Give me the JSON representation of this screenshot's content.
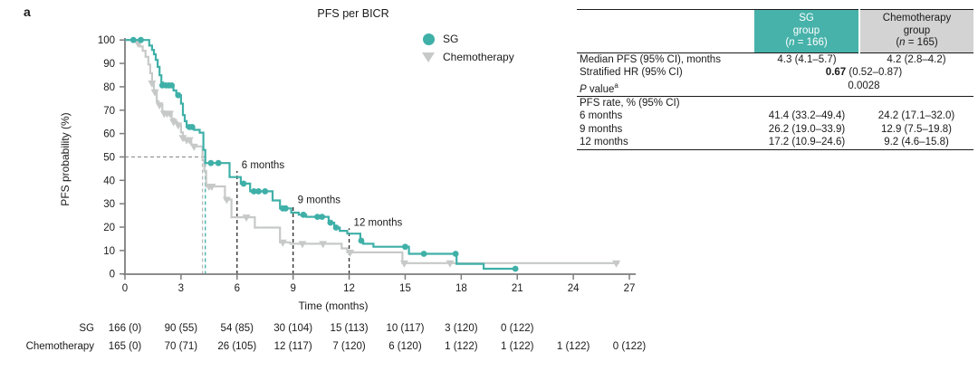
{
  "panel_label": "a",
  "title": "PFS per BICR",
  "colors": {
    "sg": "#3FB0A8",
    "chemo": "#C7C9C8",
    "header_sg_bg": "#47B2AA",
    "header_chemo_bg": "#D2D3D2",
    "shade": "#EAEAE9",
    "axis": "#7d7d7d",
    "guide_black": "#2b2b2b",
    "guide_gray": "#8f8f8f"
  },
  "legend": [
    {
      "label": "SG",
      "marker": "circle",
      "color": "#3FB0A8"
    },
    {
      "label": "Chemotherapy",
      "marker": "triangle-down",
      "color": "#C7C9C8"
    }
  ],
  "axes": {
    "x_label": "Time (months)",
    "y_label": "PFS probability (%)",
    "x_ticks": [
      0,
      3,
      6,
      9,
      12,
      15,
      18,
      21,
      24,
      27
    ],
    "y_ticks": [
      0,
      10,
      20,
      30,
      40,
      50,
      60,
      70,
      80,
      90,
      100
    ]
  },
  "chart_data": {
    "type": "line",
    "subtype": "kaplan-meier-step",
    "title": "PFS per BICR",
    "xlabel": "Time (months)",
    "ylabel": "PFS probability (%)",
    "xlim": [
      0,
      27
    ],
    "ylim": [
      0,
      100
    ],
    "series": [
      {
        "name": "SG",
        "color": "#3FB0A8",
        "marker": "circle",
        "steps": [
          [
            0,
            100
          ],
          [
            1.3,
            97.6
          ],
          [
            1.45,
            95.8
          ],
          [
            1.55,
            93.9
          ],
          [
            1.65,
            91.5
          ],
          [
            1.75,
            88.5
          ],
          [
            1.85,
            84.9
          ],
          [
            1.95,
            81.8
          ],
          [
            2.05,
            80.6
          ],
          [
            2.6,
            78.4
          ],
          [
            2.75,
            76.4
          ],
          [
            3.0,
            72.8
          ],
          [
            3.1,
            67.9
          ],
          [
            3.2,
            65.3
          ],
          [
            3.3,
            62.8
          ],
          [
            3.7,
            61.6
          ],
          [
            4.0,
            60.4
          ],
          [
            4.2,
            53.0
          ],
          [
            4.3,
            47.4
          ],
          [
            5.6,
            41.4
          ],
          [
            6.2,
            38.6
          ],
          [
            6.7,
            35.3
          ],
          [
            7.9,
            31.4
          ],
          [
            8.3,
            28.0
          ],
          [
            8.9,
            26.2
          ],
          [
            9.3,
            25.3
          ],
          [
            9.7,
            24.4
          ],
          [
            10.9,
            21.9
          ],
          [
            11.2,
            19.8
          ],
          [
            11.5,
            18.4
          ],
          [
            11.9,
            17.2
          ],
          [
            12.6,
            14.2
          ],
          [
            12.75,
            12.9
          ],
          [
            13.3,
            11.6
          ],
          [
            15.2,
            8.6
          ],
          [
            17.75,
            4.3
          ],
          [
            19.2,
            2.2
          ],
          [
            20.95,
            2.2
          ]
        ],
        "censors": [
          [
            0.45,
            100
          ],
          [
            0.85,
            100
          ],
          [
            2.0,
            80.6
          ],
          [
            2.2,
            80.6
          ],
          [
            2.35,
            80.6
          ],
          [
            2.5,
            80.6
          ],
          [
            2.85,
            76.4
          ],
          [
            3.45,
            62.8
          ],
          [
            3.6,
            62.8
          ],
          [
            4.6,
            47.4
          ],
          [
            5.0,
            47.4
          ],
          [
            6.35,
            38.6
          ],
          [
            6.9,
            35.3
          ],
          [
            7.15,
            35.3
          ],
          [
            7.5,
            35.3
          ],
          [
            8.45,
            28.0
          ],
          [
            8.6,
            28.0
          ],
          [
            9.55,
            25.3
          ],
          [
            10.3,
            24.4
          ],
          [
            10.55,
            24.4
          ],
          [
            11.0,
            21.9
          ],
          [
            11.3,
            19.8
          ],
          [
            12.65,
            14.2
          ],
          [
            15.0,
            11.6
          ],
          [
            16.0,
            8.6
          ],
          [
            17.7,
            8.6
          ],
          [
            20.9,
            2.2
          ]
        ]
      },
      {
        "name": "Chemotherapy",
        "color": "#C7C9C8",
        "marker": "triangle-down",
        "steps": [
          [
            0,
            100
          ],
          [
            0.65,
            98.6
          ],
          [
            0.8,
            97.2
          ],
          [
            0.95,
            95.4
          ],
          [
            1.1,
            92.8
          ],
          [
            1.25,
            89.5
          ],
          [
            1.35,
            85.8
          ],
          [
            1.45,
            81.5
          ],
          [
            1.55,
            77.8
          ],
          [
            1.7,
            73.8
          ],
          [
            1.8,
            72.2
          ],
          [
            2.0,
            69.5
          ],
          [
            2.1,
            68.6
          ],
          [
            2.5,
            66.3
          ],
          [
            2.65,
            65.0
          ],
          [
            2.8,
            63.6
          ],
          [
            3.0,
            60.5
          ],
          [
            3.1,
            58.2
          ],
          [
            3.2,
            57.3
          ],
          [
            3.55,
            55.3
          ],
          [
            3.65,
            54.5
          ],
          [
            4.15,
            48.5
          ],
          [
            4.25,
            44.0
          ],
          [
            4.35,
            37.4
          ],
          [
            5.35,
            31.8
          ],
          [
            5.7,
            24.2
          ],
          [
            6.95,
            19.8
          ],
          [
            8.3,
            13.5
          ],
          [
            8.85,
            12.9
          ],
          [
            11.6,
            10.9
          ],
          [
            11.9,
            9.2
          ],
          [
            14.85,
            4.6
          ],
          [
            26.45,
            4.6
          ]
        ],
        "censors": [
          [
            0.7,
            98.6
          ],
          [
            1.45,
            81.5
          ],
          [
            1.6,
            77.8
          ],
          [
            1.85,
            72.2
          ],
          [
            2.1,
            68.6
          ],
          [
            2.25,
            68.6
          ],
          [
            2.4,
            68.6
          ],
          [
            2.6,
            65.0
          ],
          [
            2.85,
            63.6
          ],
          [
            3.1,
            58.2
          ],
          [
            3.3,
            57.3
          ],
          [
            3.45,
            57.3
          ],
          [
            3.7,
            54.5
          ],
          [
            4.5,
            37.4
          ],
          [
            4.65,
            37.4
          ],
          [
            5.45,
            31.8
          ],
          [
            6.5,
            24.2
          ],
          [
            8.45,
            13.5
          ],
          [
            9.5,
            12.9
          ],
          [
            10.6,
            12.9
          ],
          [
            12.05,
            9.2
          ],
          [
            14.95,
            4.6
          ],
          [
            17.4,
            4.6
          ],
          [
            26.3,
            4.6
          ]
        ]
      }
    ],
    "guides": {
      "median_h": {
        "p": 50,
        "t_from": 0,
        "t_to": 4.3
      },
      "median_v": [
        {
          "t": 4.3,
          "color": "#3FB0A8"
        },
        {
          "t": 4.15,
          "color": "#b9bbba"
        }
      ],
      "timepoints": [
        {
          "t": 6,
          "label": "6 months",
          "top_p": 44
        },
        {
          "t": 9,
          "label": "9 months",
          "top_p": 29
        },
        {
          "t": 12,
          "label": "12 months",
          "top_p": 19.5
        }
      ]
    },
    "legend_position": "upper right",
    "grid": false
  },
  "risk_table": {
    "rows": [
      {
        "label": "SG",
        "times": [
          0,
          3,
          6,
          9,
          12,
          15,
          18,
          21
        ],
        "values": [
          "166 (0)",
          "90 (55)",
          "54 (85)",
          "30 (104)",
          "15 (113)",
          "10 (117)",
          "3 (120)",
          "0 (122)"
        ]
      },
      {
        "label": "Chemotherapy",
        "times": [
          0,
          3,
          6,
          9,
          12,
          15,
          18,
          21,
          24,
          27
        ],
        "values": [
          "165 (0)",
          "70 (71)",
          "26 (105)",
          "12 (117)",
          "7 (120)",
          "6 (120)",
          "1 (122)",
          "1 (122)",
          "1 (122)",
          "0 (122)"
        ]
      }
    ]
  },
  "stats_table": {
    "header": {
      "sg": {
        "line1": "SG",
        "line2": "group",
        "n_pre": "(",
        "n_it": "n",
        "n_post": " = 166)"
      },
      "chemo": {
        "line1": "Chemotherapy",
        "line2": "group",
        "n_pre": "(",
        "n_it": "n",
        "n_post": " = 165)"
      }
    },
    "rows": {
      "median": {
        "label": "Median PFS (95% CI), months",
        "sg": "4.3 (4.1–5.7)",
        "chemo": "4.2 (2.8–4.2)"
      },
      "hr": {
        "label": "Stratified HR (95% CI)",
        "value_bold": "0.67",
        "value_rest": " (0.52–0.87)"
      },
      "pvalue": {
        "label_it": "P",
        "label_rest": " value",
        "label_sup": "a",
        "value": "0.0028"
      },
      "rate_header": {
        "label": "PFS rate, % (95% CI)"
      },
      "m6": {
        "label": "6 months",
        "sg": "41.4 (33.2–49.4)",
        "chemo": "24.2 (17.1–32.0)"
      },
      "m9": {
        "label": "9 months",
        "sg": "26.2 (19.0–33.9)",
        "chemo": "12.9 (7.5–19.8)"
      },
      "m12": {
        "label": "12 months",
        "sg": "17.2 (10.9–24.6)",
        "chemo": "9.2 (4.6–15.8)"
      }
    }
  }
}
